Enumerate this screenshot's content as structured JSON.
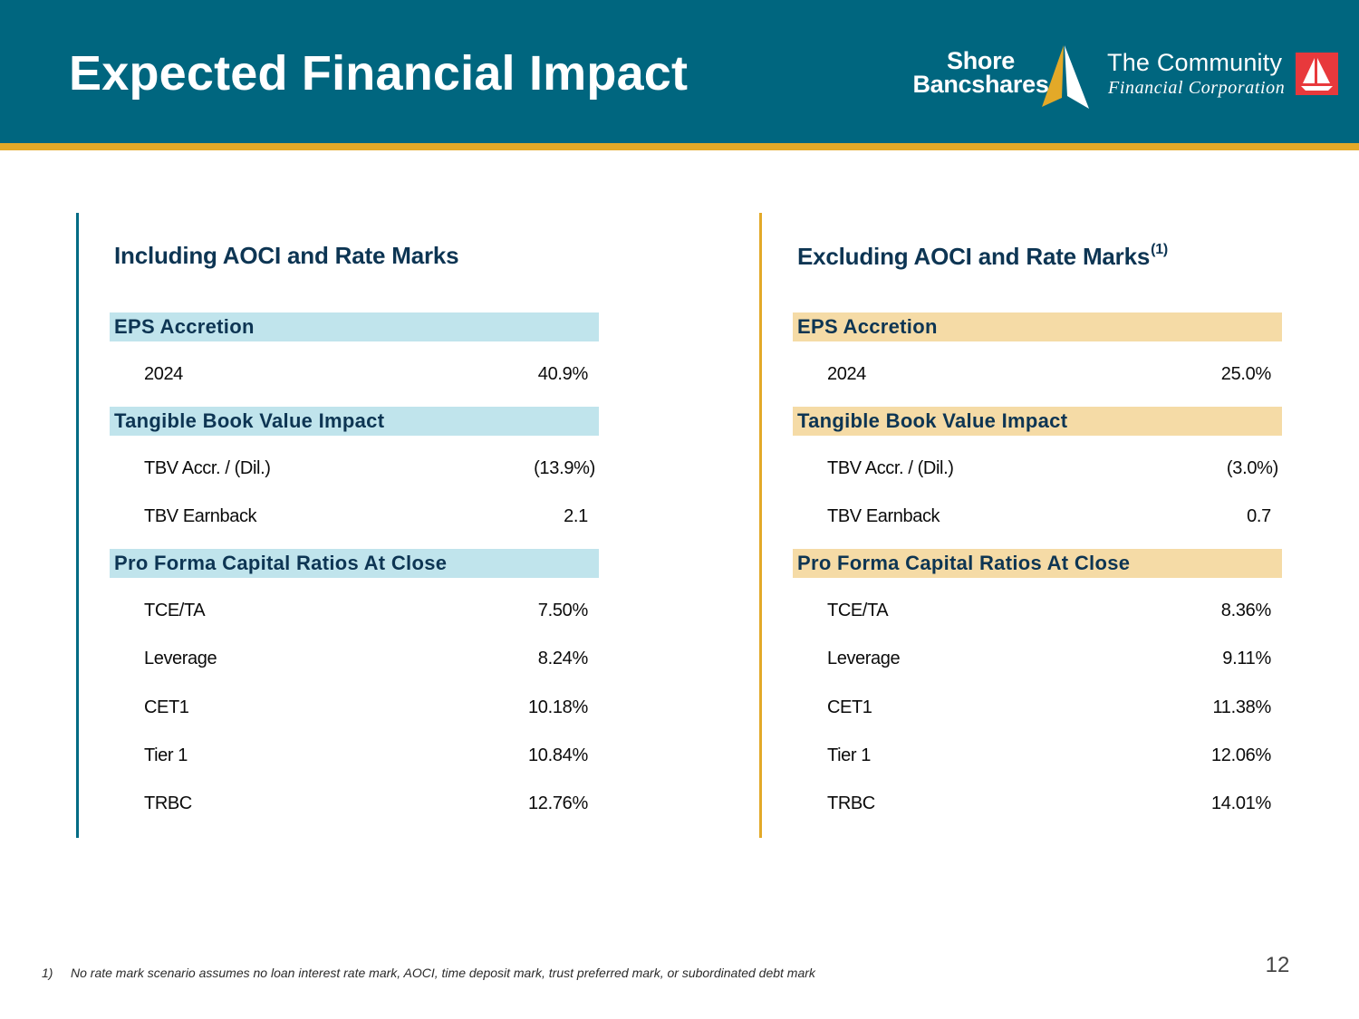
{
  "header": {
    "title": "Expected Financial Impact",
    "logos": {
      "shore": {
        "line1": "Shore",
        "line2": "Bancshares"
      },
      "tcfc": {
        "name": "The Community",
        "subtitle": "Financial Corporation"
      }
    },
    "colors": {
      "header_bg": "#00667f",
      "stripe": "#e3a928",
      "teal_section": "#c0e4ec",
      "gold_section": "#f5dba6",
      "logo_red": "#e8393c"
    }
  },
  "panels": {
    "left": {
      "title": "Including AOCI and Rate Marks",
      "eps": {
        "heading": "EPS Accretion",
        "row1_label": "2024",
        "row1_value": "40.9%"
      },
      "tbv": {
        "heading": "Tangible Book Value Impact",
        "row1_label": "TBV Accr. / (Dil.)",
        "row1_value": "(13.9%)",
        "row2_label": "TBV Earnback",
        "row2_value": "2.1"
      },
      "capital": {
        "heading": "Pro Forma Capital Ratios At Close",
        "row1_label": "TCE/TA",
        "row1_value": "7.50%",
        "row2_label": "Leverage",
        "row2_value": "8.24%",
        "row3_label": "CET1",
        "row3_value": "10.18%",
        "row4_label": "Tier 1",
        "row4_value": "10.84%",
        "row5_label": "TRBC",
        "row5_value": "12.76%"
      }
    },
    "right": {
      "title": "Excluding AOCI and Rate Marks",
      "title_sup": "(1)",
      "eps": {
        "heading": "EPS Accretion",
        "row1_label": "2024",
        "row1_value": "25.0%"
      },
      "tbv": {
        "heading": "Tangible Book Value Impact",
        "row1_label": "TBV Accr. / (Dil.)",
        "row1_value": "(3.0%)",
        "row2_label": "TBV Earnback",
        "row2_value": "0.7"
      },
      "capital": {
        "heading": "Pro Forma Capital Ratios At Close",
        "row1_label": "TCE/TA",
        "row1_value": "8.36%",
        "row2_label": "Leverage",
        "row2_value": "9.11%",
        "row3_label": "CET1",
        "row3_value": "11.38%",
        "row4_label": "Tier 1",
        "row4_value": "12.06%",
        "row5_label": "TRBC",
        "row5_value": "14.01%"
      }
    }
  },
  "footnote": {
    "number": "1)",
    "text": "No rate mark scenario assumes no loan interest rate mark, AOCI, time deposit mark, trust preferred mark, or subordinated debt mark"
  },
  "page_number": "12"
}
